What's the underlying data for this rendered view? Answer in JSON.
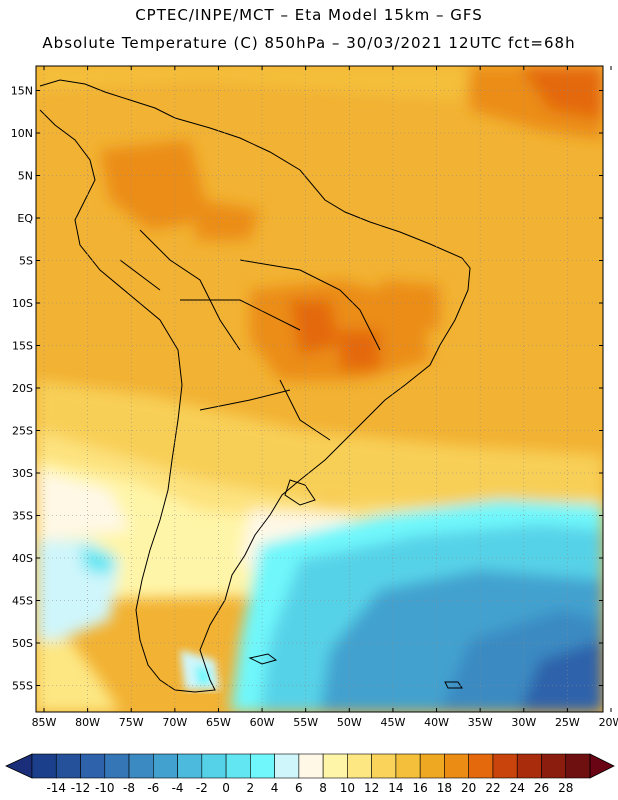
{
  "header": {
    "line1": "CPTEC/INPE/MCT –  Eta Model 15km – GFS",
    "line2": "Absolute Temperature (C) 850hPa – 30/03/2021 12UTC fct=68h"
  },
  "map": {
    "lat_ticks": [
      "15N",
      "10N",
      "5N",
      "EQ",
      "5S",
      "10S",
      "15S",
      "20S",
      "25S",
      "30S",
      "35S",
      "40S",
      "45S",
      "50S",
      "55S"
    ],
    "lon_ticks": [
      "85W",
      "80W",
      "75W",
      "70W",
      "65W",
      "60W",
      "55W",
      "50W",
      "45W",
      "40W",
      "35W",
      "30W",
      "25W",
      "20W"
    ],
    "grid": true
  },
  "colorbar": {
    "labels": [
      "-14",
      "-12",
      "-10",
      "-8",
      "-6",
      "-4",
      "-2",
      "0",
      "2",
      "4",
      "6",
      "8",
      "10",
      "12",
      "14",
      "16",
      "18",
      "20",
      "22",
      "24",
      "26",
      "28"
    ],
    "colors": [
      "#1b3f8a",
      "#25519a",
      "#2e62aa",
      "#3576b6",
      "#3b8ac2",
      "#42a1cf",
      "#4bbadc",
      "#56d2e8",
      "#62e6f2",
      "#70f7fb",
      "#cff6fb",
      "#fff8e6",
      "#fff5a8",
      "#fde783",
      "#f9d35a",
      "#f4bf3b",
      "#efa822",
      "#eb8d14",
      "#e4690d",
      "#c9440c",
      "#a92c0c",
      "#8a1d0e",
      "#6e1010"
    ],
    "under_color": "#1b2e7a",
    "over_color": "#680414"
  }
}
